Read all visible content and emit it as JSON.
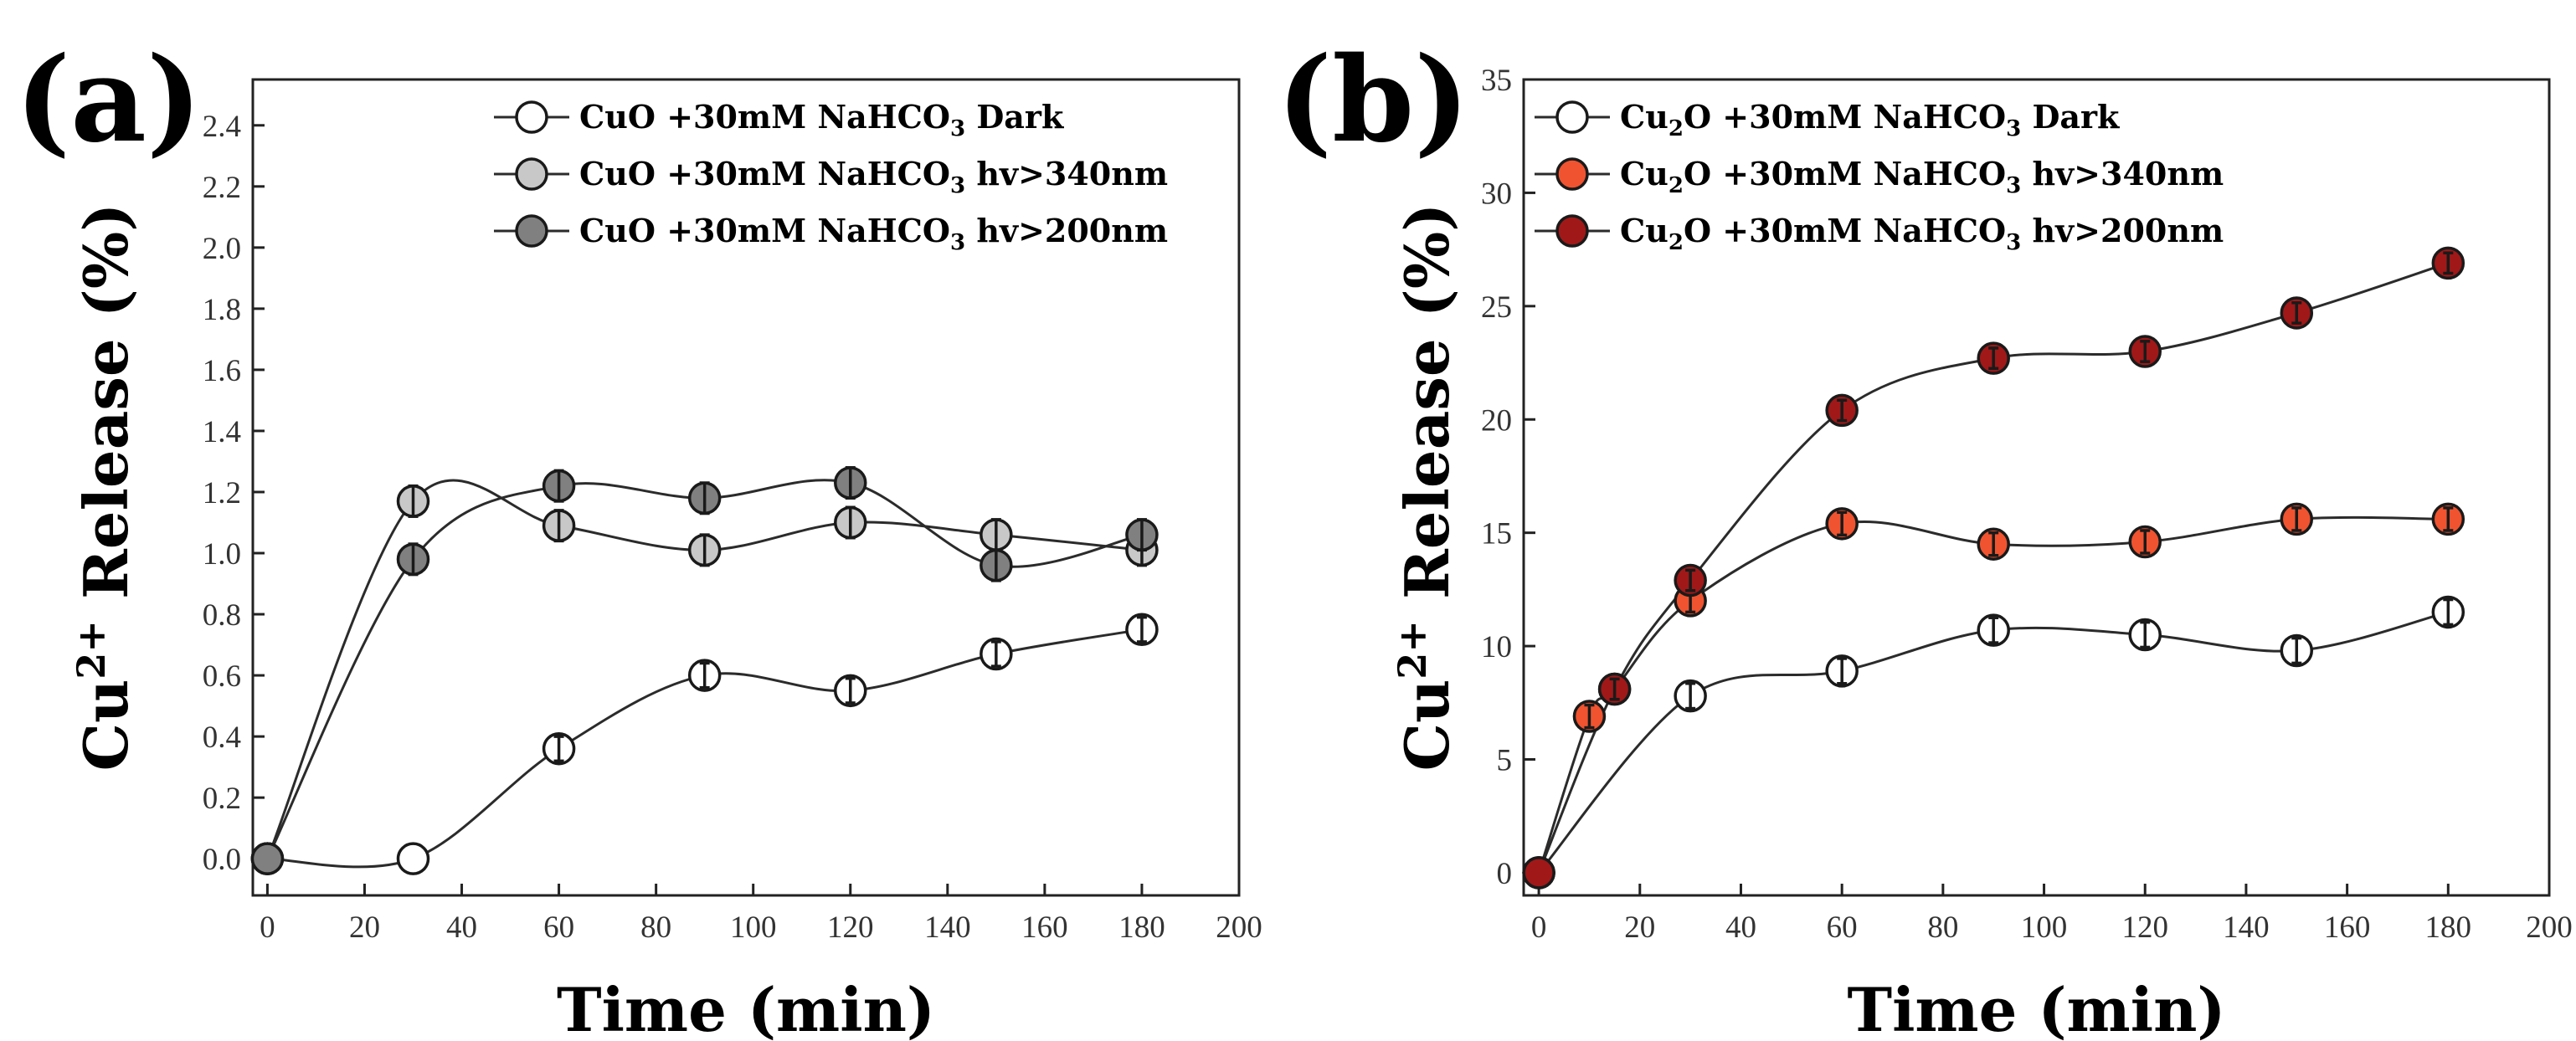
{
  "chart_data": [
    {
      "type": "line",
      "panel_label": "(a)",
      "xlabel": "Time (min)",
      "ylabel_main": "Cu",
      "ylabel_sup": "2+",
      "ylabel_rest": " Release (%)",
      "xlim": [
        -3,
        200
      ],
      "ylim": [
        -0.12,
        2.55
      ],
      "xticks": [
        0,
        20,
        40,
        60,
        80,
        100,
        120,
        140,
        160,
        180,
        200
      ],
      "yticks": [
        0.0,
        0.2,
        0.4,
        0.6,
        0.8,
        1.0,
        1.2,
        1.4,
        1.6,
        1.8,
        2.0,
        2.2,
        2.4
      ],
      "ytick_decimals": 1,
      "legend_position": "top-right",
      "series": [
        {
          "name": "CuO +30mM NaHCO3 Dark",
          "legend_prefix": "CuO +30mM NaHCO",
          "legend_sub": "3",
          "legend_suffix": " Dark",
          "color": "#ffffff",
          "x": [
            0,
            30,
            60,
            90,
            120,
            150,
            180
          ],
          "y": [
            0.0,
            0.0,
            0.36,
            0.6,
            0.55,
            0.67,
            0.75
          ],
          "error": [
            0.0,
            0.0,
            0.04,
            0.04,
            0.04,
            0.04,
            0.04
          ]
        },
        {
          "name": "CuO +30mM NaHCO3 hv>340nm",
          "legend_prefix": "CuO +30mM NaHCO",
          "legend_sub": "3",
          "legend_suffix": " hv>340nm",
          "color": "#c8c8c8",
          "x": [
            0,
            30,
            60,
            90,
            120,
            150,
            180
          ],
          "y": [
            0.0,
            1.17,
            1.09,
            1.01,
            1.1,
            1.06,
            1.01
          ],
          "error": [
            0.0,
            0.05,
            0.05,
            0.05,
            0.05,
            0.05,
            0.05
          ]
        },
        {
          "name": "CuO +30mM NaHCO3 hv>200nm",
          "legend_prefix": "CuO +30mM NaHCO",
          "legend_sub": "3",
          "legend_suffix": " hv>200nm",
          "color": "#808080",
          "x": [
            0,
            30,
            60,
            90,
            120,
            150,
            180
          ],
          "y": [
            0.0,
            0.98,
            1.22,
            1.18,
            1.23,
            0.96,
            1.06
          ],
          "error": [
            0.0,
            0.05,
            0.05,
            0.05,
            0.05,
            0.05,
            0.05
          ]
        }
      ]
    },
    {
      "type": "line",
      "panel_label": "(b)",
      "xlabel": "Time (min)",
      "ylabel_main": "Cu",
      "ylabel_sup": "2+",
      "ylabel_rest": " Release (%)",
      "xlim": [
        -3,
        200
      ],
      "ylim": [
        -1,
        35
      ],
      "xticks": [
        0,
        20,
        40,
        60,
        80,
        100,
        120,
        140,
        160,
        180,
        200
      ],
      "yticks": [
        0,
        5,
        10,
        15,
        20,
        25,
        30,
        35
      ],
      "ytick_decimals": 0,
      "legend_position": "top-left",
      "series": [
        {
          "name": "Cu2O +30mM NaHCO3 Dark",
          "legend_prefix": "Cu",
          "legend_sub": "2",
          "legend_mid": "O +30mM NaHCO",
          "legend_sub2": "3",
          "legend_suffix": " Dark",
          "color": "#ffffff",
          "x": [
            0,
            30,
            60,
            90,
            120,
            150,
            180
          ],
          "y": [
            0.0,
            7.8,
            8.9,
            10.7,
            10.5,
            9.8,
            11.5
          ],
          "error": [
            0.0,
            0.55,
            0.55,
            0.55,
            0.55,
            0.55,
            0.55
          ]
        },
        {
          "name": "Cu2O +30mM NaHCO3 hv>340nm",
          "legend_prefix": "Cu",
          "legend_sub": "2",
          "legend_mid": "O +30mM NaHCO",
          "legend_sub2": "3",
          "legend_suffix": " hv>340nm",
          "color": "#f0532f",
          "x": [
            0,
            10,
            15,
            30,
            60,
            90,
            120,
            150,
            180
          ],
          "y": [
            0.0,
            6.9,
            8.1,
            12.0,
            15.4,
            14.5,
            14.6,
            15.6,
            15.6
          ],
          "error": [
            0.0,
            0.5,
            0.5,
            0.5,
            0.5,
            0.5,
            0.5,
            0.5,
            0.5
          ]
        },
        {
          "name": "Cu2O +30mM NaHCO3 hv>200nm",
          "legend_prefix": "Cu",
          "legend_sub": "2",
          "legend_mid": "O +30mM NaHCO",
          "legend_sub2": "3",
          "legend_suffix": " hv>200nm",
          "color": "#a01818",
          "x": [
            0,
            15,
            30,
            60,
            90,
            120,
            150,
            180
          ],
          "y": [
            0.0,
            8.1,
            12.9,
            20.4,
            22.7,
            23.0,
            24.7,
            26.9
          ],
          "error": [
            0.0,
            0.45,
            0.45,
            0.45,
            0.45,
            0.45,
            0.45,
            0.45
          ]
        }
      ]
    }
  ]
}
